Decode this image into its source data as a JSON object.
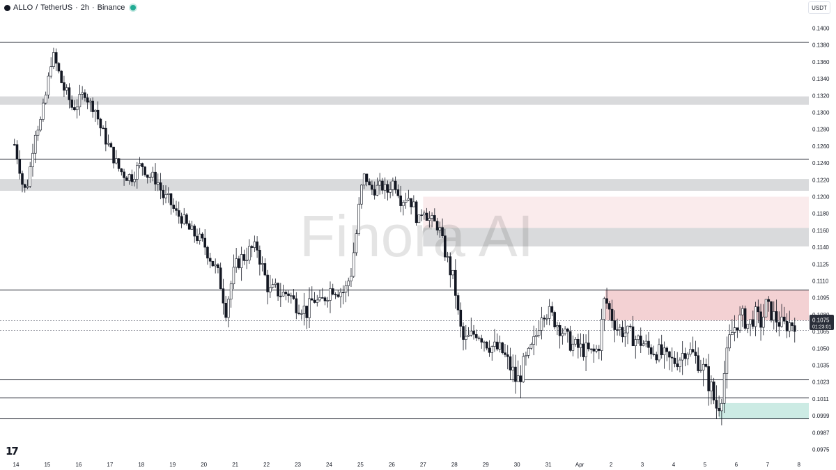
{
  "header": {
    "symbol": "ALLO",
    "separator": "/",
    "quote": "TetherUS",
    "interval": "2h",
    "exchange": "Binance",
    "live_color": "#22ab94"
  },
  "currency_button": "USDT",
  "watermark": "Finora AI",
  "logo": "17",
  "colors": {
    "up": "#ffffff",
    "down": "#131722",
    "outline": "#131722",
    "supply": "#e8a4a8",
    "demand": "#8fd3c4",
    "gray_zone": "#c9cacd",
    "last_price_bg": "#2a2e39"
  },
  "last_price": {
    "value": "0.1075",
    "countdown": "01:23:01"
  },
  "chart_data": {
    "type": "candlestick",
    "title": "ALLO / TetherUS · 2h · Binance",
    "y_ticks": [
      "0.1400",
      "0.1380",
      "0.1360",
      "0.1340",
      "0.1320",
      "0.1300",
      "0.1280",
      "0.1260",
      "0.1240",
      "0.1220",
      "0.1200",
      "0.1180",
      "0.1160",
      "0.1140",
      "0.1125",
      "0.1110",
      "0.1095",
      "0.1080",
      "0.1065",
      "0.1050",
      "0.1035",
      "0.1023",
      "0.1011",
      "0.0999",
      "0.0987",
      "0.0975"
    ],
    "x_ticks": [
      "14",
      "15",
      "16",
      "17",
      "18",
      "19",
      "20",
      "21",
      "22",
      "23",
      "24",
      "25",
      "26",
      "27",
      "28",
      "29",
      "30",
      "31",
      "Apr",
      "2",
      "3",
      "4",
      "5",
      "6",
      "7",
      "8"
    ],
    "horizontal_levels": [
      0.1384,
      0.1245,
      0.1102,
      0.1025,
      0.1012,
      0.0997
    ],
    "dotted_levels": [
      0.1075,
      0.1066
    ],
    "zones": [
      {
        "kind": "gray",
        "from": 0.1309,
        "to": 0.1319,
        "start": "13"
      },
      {
        "kind": "gray",
        "from": 0.1207,
        "to": 0.1221,
        "start": "13"
      },
      {
        "kind": "gray",
        "from": 0.1141,
        "to": 0.1163,
        "start": "27"
      },
      {
        "kind": "supply_light",
        "from": 0.1163,
        "to": 0.12,
        "start": "27"
      },
      {
        "kind": "supply",
        "from": 0.1075,
        "to": 0.1102,
        "start": "Apr 1"
      },
      {
        "kind": "demand",
        "from": 0.0997,
        "to": 0.1008,
        "start": "Apr 5"
      }
    ],
    "path": [
      [
        13.95,
        0.1262
      ],
      [
        14.1,
        0.1238
      ],
      [
        14.25,
        0.1205
      ],
      [
        14.4,
        0.122
      ],
      [
        14.6,
        0.1278
      ],
      [
        14.8,
        0.129
      ],
      [
        15.0,
        0.133
      ],
      [
        15.15,
        0.137
      ],
      [
        15.3,
        0.1355
      ],
      [
        15.5,
        0.133
      ],
      [
        15.65,
        0.132
      ],
      [
        15.8,
        0.1305
      ],
      [
        16.0,
        0.1312
      ],
      [
        16.2,
        0.1325
      ],
      [
        16.35,
        0.131
      ],
      [
        16.5,
        0.1308
      ],
      [
        16.7,
        0.1282
      ],
      [
        16.9,
        0.1265
      ],
      [
        17.1,
        0.1248
      ],
      [
        17.3,
        0.1232
      ],
      [
        17.5,
        0.1225
      ],
      [
        17.7,
        0.1224
      ],
      [
        17.9,
        0.1235
      ],
      [
        18.05,
        0.1238
      ],
      [
        18.2,
        0.1226
      ],
      [
        18.5,
        0.122
      ],
      [
        18.7,
        0.12
      ],
      [
        18.9,
        0.1195
      ],
      [
        19.1,
        0.118
      ],
      [
        19.3,
        0.1175
      ],
      [
        19.5,
        0.1162
      ],
      [
        19.7,
        0.1155
      ],
      [
        19.9,
        0.1148
      ],
      [
        20.1,
        0.1138
      ],
      [
        20.3,
        0.1125
      ],
      [
        20.5,
        0.1112
      ],
      [
        20.7,
        0.1085
      ],
      [
        20.9,
        0.1112
      ],
      [
        21.1,
        0.1128
      ],
      [
        21.3,
        0.1132
      ],
      [
        21.5,
        0.1138
      ],
      [
        21.7,
        0.114
      ],
      [
        21.9,
        0.1118
      ],
      [
        22.1,
        0.11
      ],
      [
        22.3,
        0.1102
      ],
      [
        22.5,
        0.1098
      ],
      [
        22.7,
        0.11
      ],
      [
        22.9,
        0.109
      ],
      [
        23.1,
        0.1088
      ],
      [
        23.3,
        0.1082
      ],
      [
        23.5,
        0.1095
      ],
      [
        23.7,
        0.1088
      ],
      [
        23.9,
        0.1098
      ],
      [
        24.1,
        0.1105
      ],
      [
        24.3,
        0.1102
      ],
      [
        24.5,
        0.11
      ],
      [
        24.7,
        0.1118
      ],
      [
        24.85,
        0.115
      ],
      [
        25.0,
        0.1205
      ],
      [
        25.15,
        0.1228
      ],
      [
        25.3,
        0.1208
      ],
      [
        25.5,
        0.121
      ],
      [
        25.7,
        0.1212
      ],
      [
        25.85,
        0.1205
      ],
      [
        26.0,
        0.1218
      ],
      [
        26.15,
        0.1214
      ],
      [
        26.3,
        0.1195
      ],
      [
        26.5,
        0.1202
      ],
      [
        26.7,
        0.1188
      ],
      [
        26.85,
        0.1168
      ],
      [
        27.0,
        0.119
      ],
      [
        27.15,
        0.1175
      ],
      [
        27.3,
        0.117
      ],
      [
        27.5,
        0.1165
      ],
      [
        27.6,
        0.1148
      ],
      [
        27.8,
        0.1125
      ],
      [
        28.0,
        0.1108
      ],
      [
        28.15,
        0.1072
      ],
      [
        28.3,
        0.1055
      ],
      [
        28.5,
        0.106
      ],
      [
        28.7,
        0.1065
      ],
      [
        28.9,
        0.106
      ],
      [
        29.1,
        0.1053
      ],
      [
        29.3,
        0.105
      ],
      [
        29.5,
        0.1048
      ],
      [
        29.7,
        0.1038
      ],
      [
        29.9,
        0.1028
      ],
      [
        30.0,
        0.1022
      ],
      [
        30.2,
        0.1035
      ],
      [
        30.4,
        0.1045
      ],
      [
        30.6,
        0.106
      ],
      [
        30.8,
        0.1085
      ],
      [
        31.0,
        0.1082
      ],
      [
        31.2,
        0.1075
      ],
      [
        31.4,
        0.1068
      ],
      [
        31.6,
        0.1058
      ],
      [
        31.8,
        0.1052
      ],
      [
        32.0,
        0.105
      ],
      [
        32.2,
        0.1048
      ],
      [
        32.4,
        0.1045
      ],
      [
        32.6,
        0.105
      ],
      [
        32.8,
        0.1095
      ],
      [
        33.0,
        0.108
      ],
      [
        33.2,
        0.1068
      ],
      [
        33.4,
        0.1065
      ],
      [
        33.6,
        0.1062
      ],
      [
        33.8,
        0.1058
      ],
      [
        34.0,
        0.1055
      ],
      [
        34.2,
        0.105
      ],
      [
        34.4,
        0.1048
      ],
      [
        34.6,
        0.1045
      ],
      [
        34.8,
        0.104
      ],
      [
        35.0,
        0.1038
      ],
      [
        35.2,
        0.1042
      ],
      [
        35.4,
        0.105
      ],
      [
        35.6,
        0.1045
      ],
      [
        35.8,
        0.1038
      ],
      [
        36.0,
        0.103
      ],
      [
        36.2,
        0.1018
      ],
      [
        36.35,
        0.1005
      ],
      [
        36.5,
        0.101
      ],
      [
        36.65,
        0.1035
      ],
      [
        36.8,
        0.106
      ],
      [
        37.0,
        0.1072
      ],
      [
        37.2,
        0.1078
      ],
      [
        37.4,
        0.107
      ],
      [
        37.6,
        0.108
      ],
      [
        37.8,
        0.1072
      ],
      [
        37.95,
        0.1088
      ],
      [
        38.1,
        0.1082
      ],
      [
        38.3,
        0.1075
      ],
      [
        38.5,
        0.107
      ],
      [
        38.7,
        0.1072
      ],
      [
        38.9,
        0.1073
      ]
    ]
  }
}
